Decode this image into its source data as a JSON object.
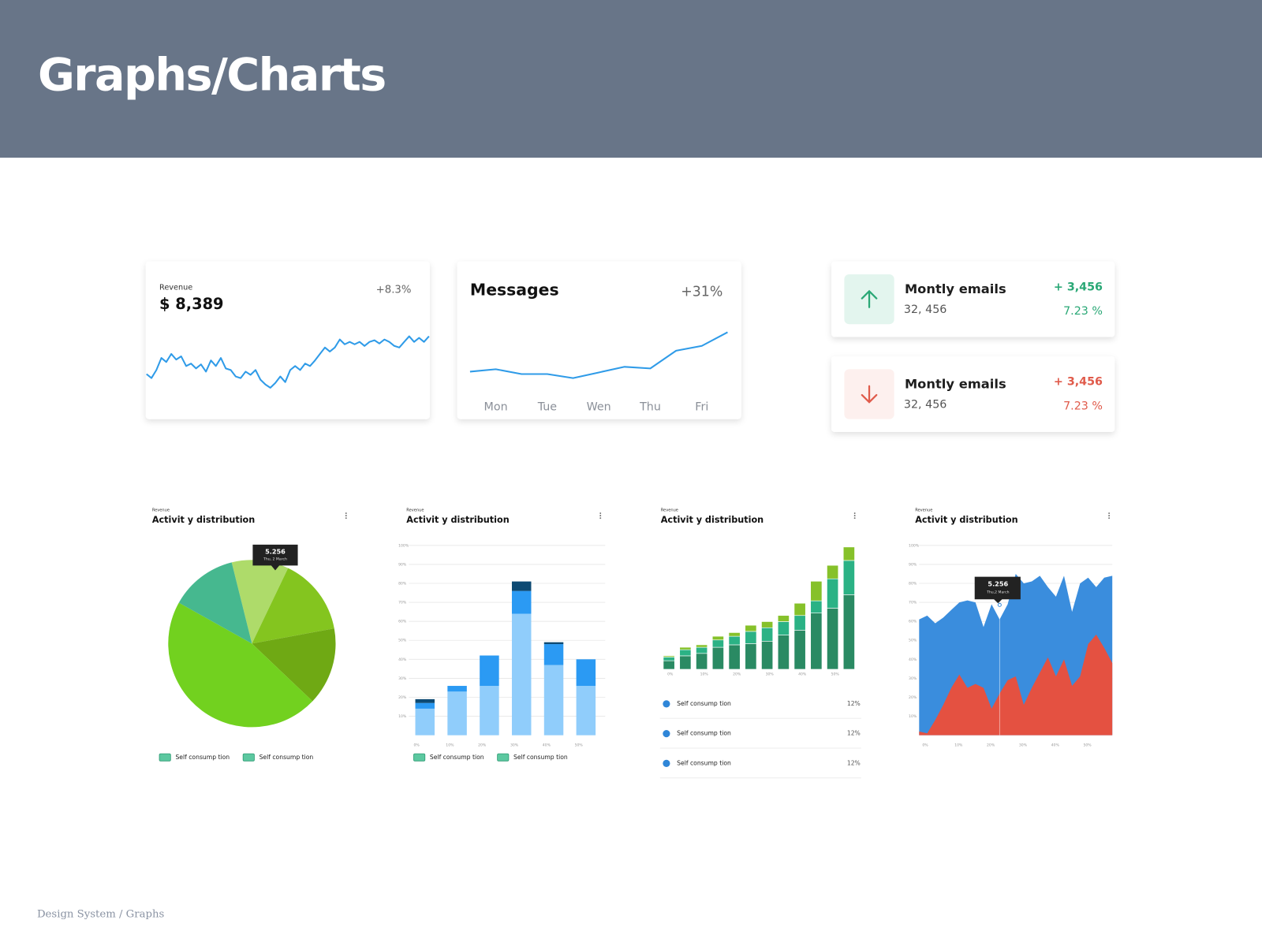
{
  "header": {
    "title": "Graphs/Charts"
  },
  "footer": "Design System / Graphs",
  "stat_cards": [
    {
      "title": "Montly emails",
      "value": "32, 456",
      "change": "+ 3,456",
      "percent": "7.23 %",
      "direction": "up",
      "color": "#2aa876",
      "icon_bg": "#e3f5ee"
    },
    {
      "title": "Montly emails",
      "value": "32, 456",
      "change": "+ 3,456",
      "percent": "7.23 %",
      "direction": "down",
      "color": "#e05b4b",
      "icon_bg": "#fdf0ee"
    }
  ],
  "chart_data": [
    {
      "type": "line",
      "label": "Revenue",
      "title": "$ 8,389",
      "change": "+8.3%",
      "color": "#2f9be8",
      "ylim": [
        0,
        80
      ],
      "values": [
        25,
        20,
        30,
        45,
        40,
        50,
        43,
        47,
        35,
        38,
        32,
        37,
        28,
        42,
        35,
        45,
        32,
        30,
        22,
        20,
        28,
        24,
        30,
        18,
        12,
        8,
        14,
        22,
        15,
        30,
        35,
        30,
        38,
        35,
        42,
        50,
        58,
        53,
        58,
        68,
        62,
        65,
        62,
        65,
        60,
        65,
        67,
        63,
        68,
        65,
        60,
        58,
        65,
        72,
        65,
        70,
        65,
        72
      ]
    },
    {
      "type": "line",
      "title": "Messages",
      "change": "+31%",
      "color": "#2f9be8",
      "ylim": [
        0,
        90
      ],
      "categories": [
        null,
        "Mon",
        null,
        "Tue",
        null,
        "Wen",
        null,
        "Thu",
        null,
        "Fri",
        null
      ],
      "values": [
        18,
        21,
        15,
        15,
        10,
        17,
        24,
        22,
        44,
        50,
        67
      ]
    },
    {
      "type": "pie",
      "subtitle": "Revenue",
      "title": "Activit y distribution",
      "values": [
        11,
        15,
        15,
        46,
        13
      ],
      "colors": [
        "#aedb6a",
        "#84c51f",
        "#6fa914",
        "#72d11f",
        "#46b88f"
      ],
      "tooltip": {
        "value": "5.256",
        "date": "Thu, 2 March"
      },
      "legend": [
        "Self consump tion",
        "Self consump tion"
      ],
      "legend_color": "#5cc8a0"
    },
    {
      "type": "bar",
      "stacked": true,
      "subtitle": "Revenue",
      "title": "Activit y distribution",
      "categories": [
        "0%",
        "10%",
        "20%",
        "30%",
        "40%",
        "50%"
      ],
      "series": [
        {
          "color": "#90cdfb",
          "values": [
            14,
            23,
            26,
            64,
            37,
            26
          ]
        },
        {
          "color": "#2b9af3",
          "values": [
            3,
            3,
            16,
            12,
            11,
            14
          ]
        },
        {
          "color": "#0d4a73",
          "values": [
            2,
            0,
            0,
            5,
            1,
            0
          ]
        }
      ],
      "ylim": [
        0,
        100
      ],
      "yticks": [
        {
          "value": 10,
          "label": "10%"
        },
        {
          "value": 20,
          "label": "20%"
        },
        {
          "value": 30,
          "label": "30%"
        },
        {
          "value": 40,
          "label": "40%"
        },
        {
          "value": 50,
          "label": "50%"
        },
        {
          "value": 60,
          "label": "60%"
        },
        {
          "value": 70,
          "label": "70%"
        },
        {
          "value": 80,
          "label": "80%"
        },
        {
          "value": 90,
          "label": "90%"
        },
        {
          "value": 100,
          "label": "100%"
        }
      ],
      "grid": true,
      "legend": [
        "Self consump tion",
        "Self consump tion"
      ],
      "legend_color": "#5cc8a0"
    },
    {
      "type": "bar",
      "stacked": true,
      "subtitle": "Revenue",
      "title": "Activit y distribution",
      "categories": [
        "0%",
        null,
        "10%",
        null,
        "20%",
        null,
        "30%",
        null,
        "40%",
        null,
        "50%",
        null
      ],
      "series": [
        {
          "color": "#2a8a63",
          "values": [
            7,
            11,
            13,
            18,
            20,
            21,
            23,
            28,
            32,
            46,
            50,
            61
          ]
        },
        {
          "color": "#2bb285",
          "values": [
            3,
            5,
            5,
            6,
            7,
            10,
            11,
            11,
            12,
            10,
            24,
            28
          ]
        },
        {
          "color": "#86c12a",
          "values": [
            1,
            2,
            2,
            3,
            3,
            5,
            5,
            5,
            10,
            16,
            11,
            11
          ]
        }
      ],
      "ylim": [
        0,
        100
      ],
      "list": [
        {
          "label": "Self consump tion",
          "value": "12%"
        },
        {
          "label": "Self consump tion",
          "value": "12%"
        },
        {
          "label": "Self consump tion",
          "value": "12%"
        }
      ],
      "list_color": "#2f86d8"
    },
    {
      "type": "area",
      "subtitle": "Revenue",
      "title": "Activit y distribution",
      "categories": [
        "0%",
        null,
        null,
        null,
        "10%",
        null,
        null,
        null,
        "20%",
        null,
        null,
        null,
        "30%",
        null,
        null,
        null,
        "40%",
        null,
        null,
        null,
        "50%",
        null,
        null,
        null,
        null
      ],
      "series": [
        {
          "color": "#3a8ddd",
          "values": [
            61,
            63,
            59,
            62,
            66,
            70,
            71,
            70,
            57,
            69,
            61,
            69,
            85,
            80,
            81,
            84,
            78,
            73,
            84,
            65,
            80,
            83,
            78,
            83,
            84
          ]
        },
        {
          "color": "#e45141",
          "values": [
            2,
            1,
            8,
            16,
            25,
            32,
            25,
            27,
            25,
            14,
            22,
            29,
            31,
            16,
            25,
            33,
            41,
            31,
            40,
            26,
            31,
            48,
            53,
            46,
            38
          ]
        }
      ],
      "ylim": [
        0,
        100
      ],
      "yticks": [
        {
          "value": 10,
          "label": "10%"
        },
        {
          "value": 20,
          "label": "20%"
        },
        {
          "value": 30,
          "label": "30%"
        },
        {
          "value": 40,
          "label": "40%"
        },
        {
          "value": 50,
          "label": "50%"
        },
        {
          "value": 60,
          "label": "60%"
        },
        {
          "value": 70,
          "label": "70%"
        },
        {
          "value": 80,
          "label": "80%"
        },
        {
          "value": 90,
          "label": "90%"
        },
        {
          "value": 100,
          "label": "100%"
        }
      ],
      "grid": true,
      "tooltip": {
        "value": "5.256",
        "date": "Thu,2 March"
      }
    }
  ]
}
